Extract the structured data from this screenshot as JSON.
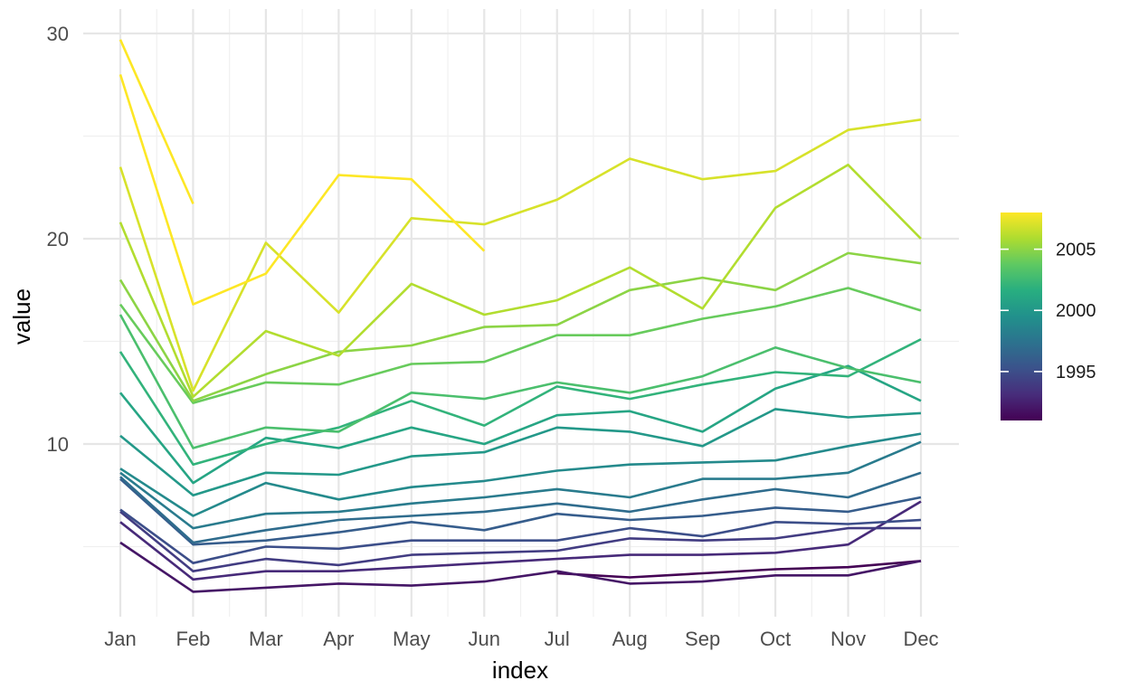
{
  "chart_data": {
    "type": "line",
    "title": "",
    "xlabel": "index",
    "ylabel": "value",
    "categories": [
      "Jan",
      "Feb",
      "Mar",
      "Apr",
      "May",
      "Jun",
      "Jul",
      "Aug",
      "Sep",
      "Oct",
      "Nov",
      "Dec"
    ],
    "ylim": [
      2.0,
      30.0
    ],
    "y_ticks": [
      10,
      20,
      30
    ],
    "y_tick_labels": [
      "10",
      "20",
      "30"
    ],
    "grid": true,
    "legend": {
      "position": "right",
      "type": "colorbar",
      "min": 1991,
      "max": 2008,
      "ticks": [
        1995,
        2000,
        2005
      ],
      "tick_labels": [
        "1995",
        "2000",
        "2005"
      ],
      "colors": [
        "#440154",
        "#472d7b",
        "#3b528b",
        "#2c728e",
        "#21918c",
        "#28ae80",
        "#5ec962",
        "#addc30",
        "#fde725"
      ]
    },
    "series": [
      {
        "year": 1991,
        "values": [
          null,
          null,
          null,
          null,
          null,
          null,
          3.7,
          3.5,
          3.7,
          3.9,
          4.0,
          4.3
        ]
      },
      {
        "year": 1992,
        "values": [
          5.2,
          2.8,
          3.0,
          3.2,
          3.1,
          3.3,
          3.8,
          3.2,
          3.3,
          3.6,
          3.6,
          4.3
        ]
      },
      {
        "year": 1993,
        "values": [
          6.2,
          3.4,
          3.8,
          3.8,
          4.0,
          4.2,
          4.4,
          4.6,
          4.6,
          4.7,
          5.1,
          7.2
        ]
      },
      {
        "year": 1994,
        "values": [
          6.7,
          3.8,
          4.4,
          4.1,
          4.6,
          4.7,
          4.8,
          5.4,
          5.3,
          5.4,
          5.9,
          5.9
        ]
      },
      {
        "year": 1995,
        "values": [
          6.8,
          4.2,
          5.0,
          4.9,
          5.3,
          5.3,
          5.3,
          5.9,
          5.5,
          6.2,
          6.1,
          6.3
        ]
      },
      {
        "year": 1996,
        "values": [
          8.3,
          5.1,
          5.3,
          5.7,
          6.2,
          5.8,
          6.6,
          6.3,
          6.5,
          6.9,
          6.7,
          7.4
        ]
      },
      {
        "year": 1997,
        "values": [
          8.4,
          5.2,
          5.8,
          6.3,
          6.5,
          6.7,
          7.1,
          6.7,
          7.3,
          7.8,
          7.4,
          8.6
        ]
      },
      {
        "year": 1998,
        "values": [
          8.6,
          5.9,
          6.6,
          6.7,
          7.1,
          7.4,
          7.8,
          7.4,
          8.3,
          8.3,
          8.6,
          10.1
        ]
      },
      {
        "year": 1999,
        "values": [
          8.8,
          6.5,
          8.1,
          7.3,
          7.9,
          8.2,
          8.7,
          9.0,
          9.1,
          9.2,
          9.9,
          10.5
        ]
      },
      {
        "year": 2000,
        "values": [
          10.4,
          7.5,
          8.6,
          8.5,
          9.4,
          9.6,
          10.8,
          10.6,
          9.9,
          11.7,
          11.3,
          11.5
        ]
      },
      {
        "year": 2001,
        "values": [
          12.5,
          8.1,
          10.3,
          9.8,
          10.8,
          10.0,
          11.4,
          11.6,
          10.6,
          12.7,
          13.8,
          12.1
        ]
      },
      {
        "year": 2002,
        "values": [
          14.5,
          9.0,
          10.0,
          10.8,
          12.1,
          10.9,
          12.8,
          12.2,
          12.9,
          13.5,
          13.3,
          15.1
        ]
      },
      {
        "year": 2003,
        "values": [
          16.3,
          9.8,
          10.8,
          10.6,
          12.5,
          12.2,
          13.0,
          12.5,
          13.3,
          14.7,
          13.7,
          13.0
        ]
      },
      {
        "year": 2004,
        "values": [
          16.8,
          12.0,
          13.0,
          12.9,
          13.9,
          14.0,
          15.3,
          15.3,
          16.1,
          16.7,
          17.6,
          16.5
        ]
      },
      {
        "year": 2005,
        "values": [
          18.0,
          12.1,
          13.4,
          14.5,
          14.8,
          15.7,
          15.8,
          17.5,
          18.1,
          17.5,
          19.3,
          18.8
        ]
      },
      {
        "year": 2006,
        "values": [
          20.8,
          12.3,
          15.5,
          14.3,
          17.8,
          16.3,
          17.0,
          18.6,
          16.6,
          21.5,
          23.6,
          20.0
        ]
      },
      {
        "year": 2007,
        "values": [
          23.5,
          12.6,
          19.8,
          16.4,
          21.0,
          20.7,
          21.9,
          23.9,
          22.9,
          23.3,
          25.3,
          25.8
        ]
      },
      {
        "year": 2008,
        "values": [
          28.0,
          16.8,
          18.3,
          23.1,
          22.9,
          19.4,
          null,
          null,
          null,
          null,
          null,
          null
        ]
      },
      {
        "year": 2009,
        "values": [
          29.7,
          21.7,
          null,
          null,
          null,
          null,
          null,
          null,
          null,
          null,
          null,
          null
        ]
      }
    ]
  }
}
